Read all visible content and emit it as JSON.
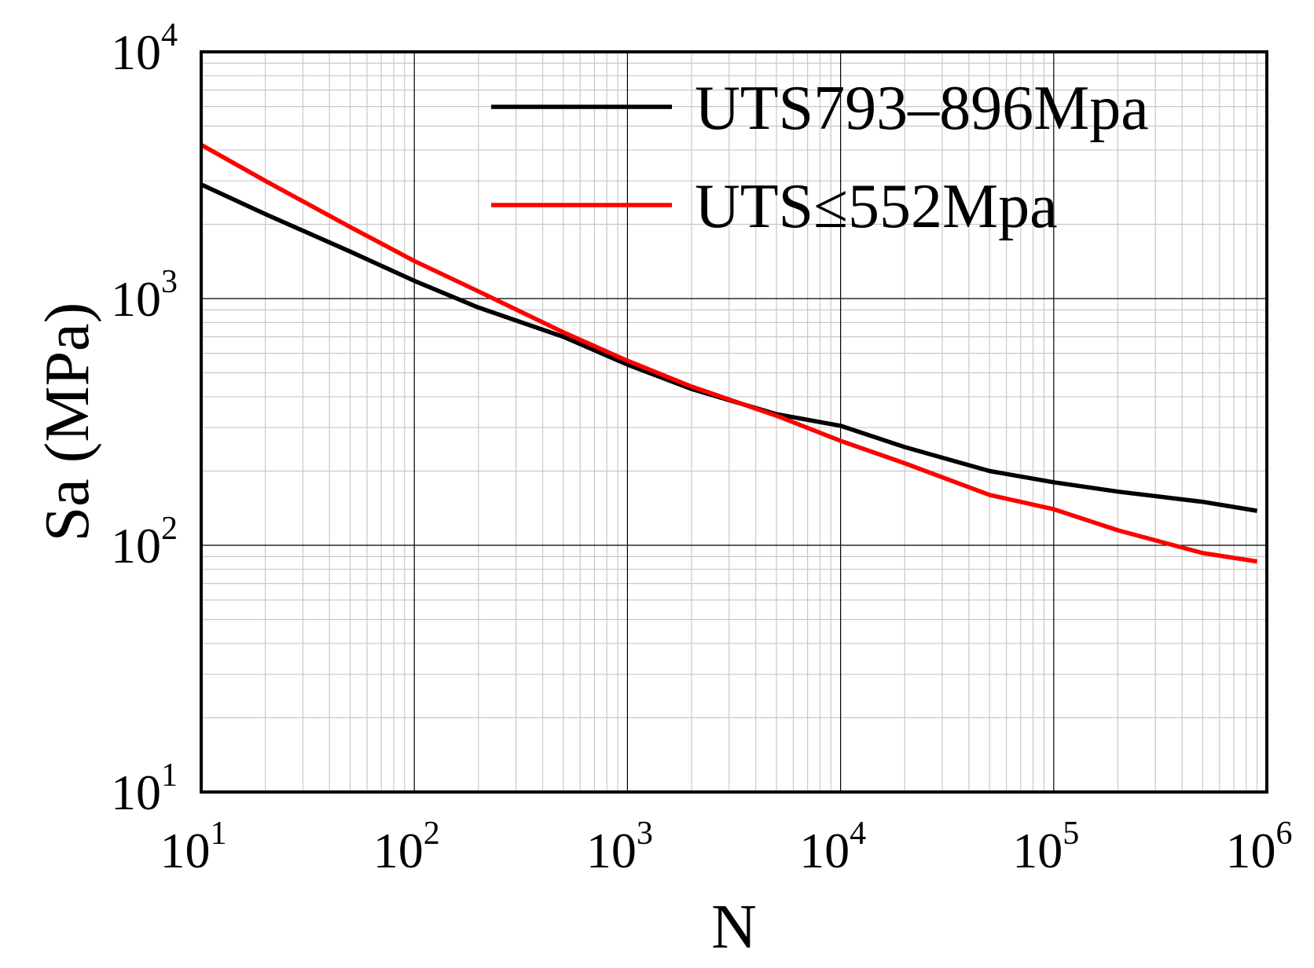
{
  "chart_data": {
    "type": "line",
    "title": "",
    "xlabel": "N",
    "ylabel": "Sa (MPa)",
    "xscale": "log",
    "yscale": "log",
    "xlim": [
      10,
      1000000
    ],
    "ylim": [
      10,
      10000
    ],
    "grid": true,
    "legend": "top-right",
    "x_ticks": [
      {
        "base": "10",
        "exp": "1",
        "value": 10
      },
      {
        "base": "10",
        "exp": "2",
        "value": 100
      },
      {
        "base": "10",
        "exp": "3",
        "value": 1000
      },
      {
        "base": "10",
        "exp": "4",
        "value": 10000
      },
      {
        "base": "10",
        "exp": "5",
        "value": 100000
      },
      {
        "base": "10",
        "exp": "6",
        "value": 1000000
      }
    ],
    "y_ticks": [
      {
        "base": "10",
        "exp": "1",
        "value": 10
      },
      {
        "base": "10",
        "exp": "2",
        "value": 100
      },
      {
        "base": "10",
        "exp": "3",
        "value": 1000
      },
      {
        "base": "10",
        "exp": "4",
        "value": 10000
      }
    ],
    "series": [
      {
        "name": "UTS793–896Mpa",
        "color": "#000000",
        "x": [
          10,
          20,
          50,
          100,
          200,
          500,
          1000,
          2000,
          5000,
          10000,
          20000,
          50000,
          100000,
          200000,
          500000,
          900000
        ],
        "y": [
          2900,
          2200,
          1550,
          1180,
          920,
          700,
          540,
          430,
          340,
          305,
          250,
          200,
          180,
          165,
          150,
          138
        ]
      },
      {
        "name": "UTS≤552Mpa",
        "color": "#ff0000",
        "x": [
          10,
          20,
          50,
          100,
          200,
          500,
          1000,
          2000,
          5000,
          10000,
          20000,
          50000,
          100000,
          200000,
          500000,
          900000
        ],
        "y": [
          4200,
          3000,
          1950,
          1420,
          1070,
          730,
          560,
          440,
          335,
          265,
          215,
          160,
          140,
          115,
          93,
          86
        ]
      }
    ]
  }
}
